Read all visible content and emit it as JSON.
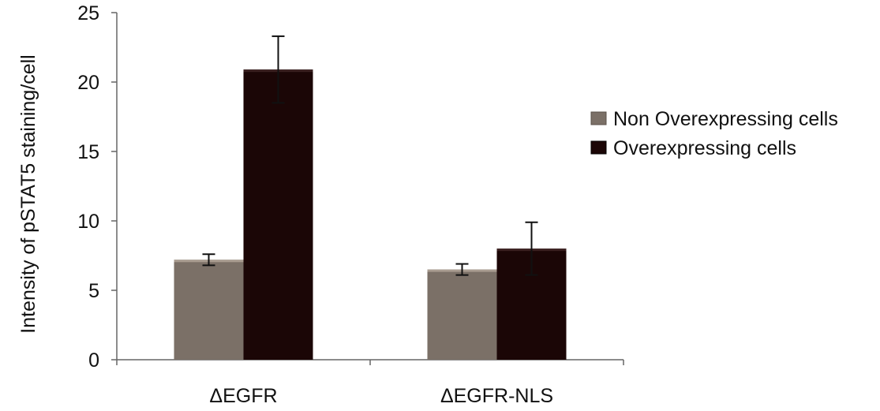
{
  "chart_data": {
    "type": "bar",
    "title": "",
    "xlabel": "",
    "ylabel": "Intensity of pSTAT5 staining/cell",
    "ylim": [
      0,
      25
    ],
    "yticks": [
      0,
      5,
      10,
      15,
      20,
      25
    ],
    "categories": [
      "ΔEGFR",
      "ΔEGFR-NLS"
    ],
    "series": [
      {
        "name": "Non Overexpressing cells",
        "color": "#7b7067",
        "values": [
          7.2,
          6.5
        ],
        "error": [
          0.4,
          0.4
        ]
      },
      {
        "name": "Overexpressing cells",
        "color": "#1b0606",
        "values": [
          20.9,
          8.0
        ],
        "error": [
          2.4,
          1.9
        ]
      }
    ],
    "grid": false,
    "legend_position": "right"
  }
}
